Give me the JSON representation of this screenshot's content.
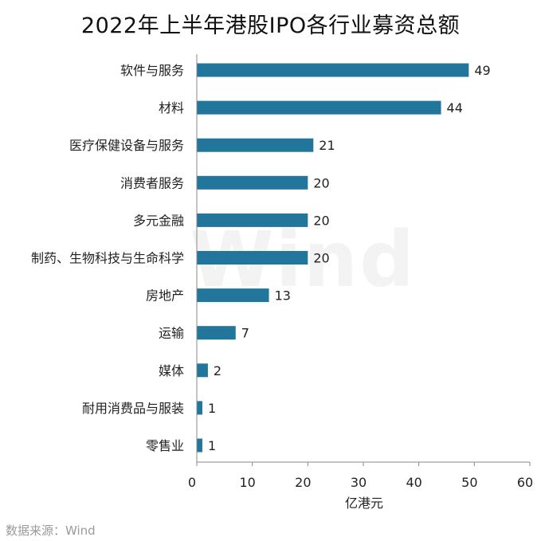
{
  "chart_data": {
    "type": "bar",
    "orientation": "horizontal",
    "title": "2022年上半年港股IPO各行业募资总额",
    "categories": [
      "软件与服务",
      "材料",
      "医疗保健设备与服务",
      "消费者服务",
      "多元金融",
      "制药、生物科技与生命科学",
      "房地产",
      "运输",
      "媒体",
      "耐用消费品与服装",
      "零售业"
    ],
    "values": [
      49,
      44,
      21,
      20,
      20,
      20,
      13,
      7,
      2,
      1,
      1
    ],
    "xlabel": "亿港元",
    "ylabel": "",
    "xlim": [
      0,
      60
    ],
    "xticks": [
      0,
      10,
      20,
      30,
      40,
      50,
      60
    ],
    "bar_color": "#22759b",
    "grid": false
  },
  "source": "数据来源：Wind",
  "watermark": "Wind"
}
